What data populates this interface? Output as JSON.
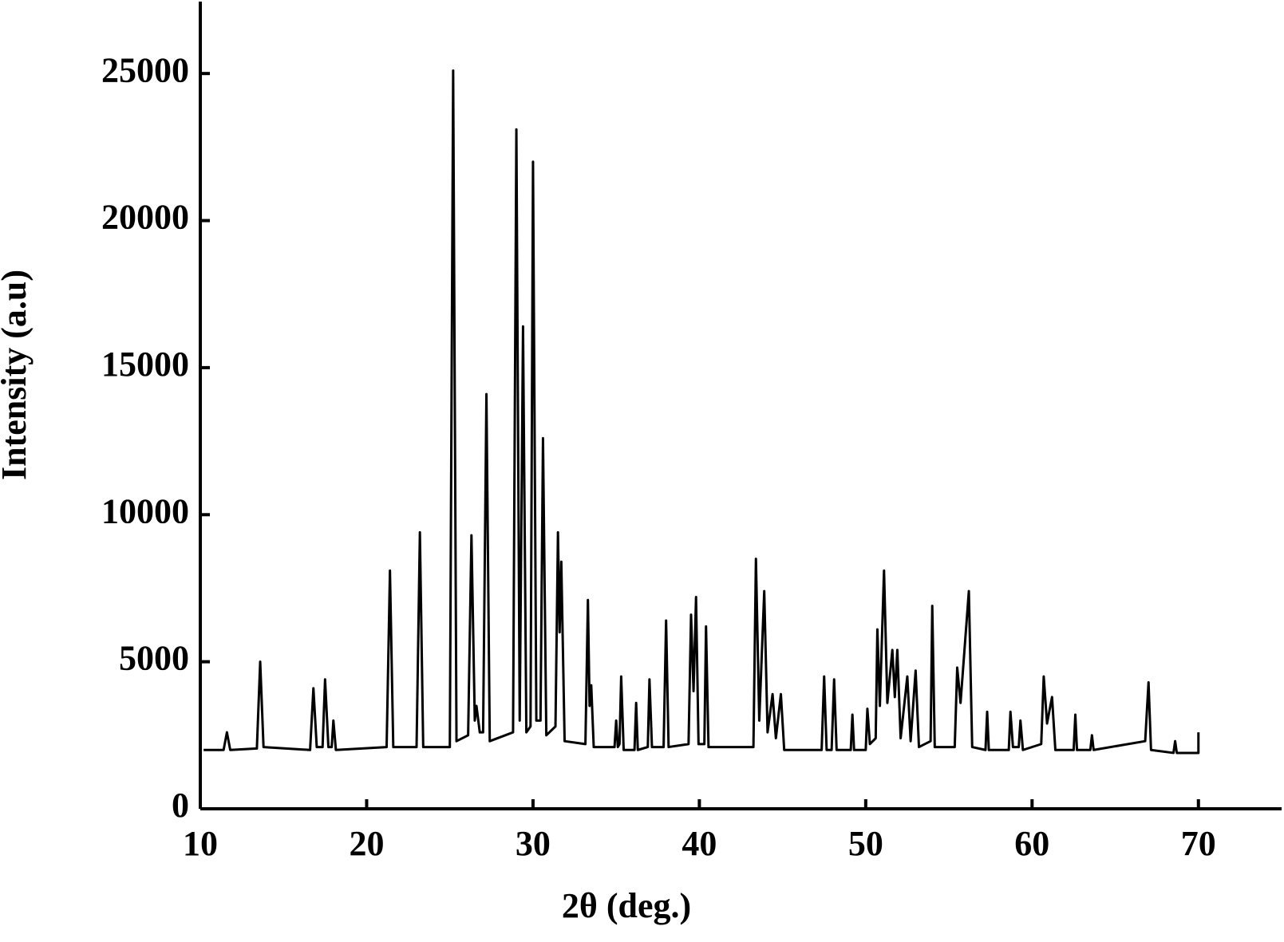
{
  "chart_data": {
    "type": "line",
    "x_label": "2θ (deg.)",
    "y_label": "Intensity (a.u)",
    "xlim": [
      10,
      75
    ],
    "ylim": [
      0,
      27500
    ],
    "xticks": [
      10,
      20,
      30,
      40,
      50,
      60,
      70
    ],
    "yticks": [
      0,
      5000,
      10000,
      15000,
      20000,
      25000
    ],
    "series": [
      {
        "color": "#000000",
        "x": [
          10.2,
          11.4,
          11.6,
          11.8,
          13.4,
          13.6,
          13.8,
          16.6,
          16.8,
          17.0,
          17.35,
          17.5,
          17.7,
          17.9,
          18.0,
          18.15,
          21.2,
          21.4,
          21.6,
          23.0,
          23.2,
          23.4,
          25.0,
          25.2,
          25.4,
          26.1,
          26.3,
          26.5,
          26.6,
          26.8,
          27.0,
          27.2,
          27.4,
          28.8,
          29.0,
          29.2,
          29.4,
          29.6,
          29.85,
          30.0,
          30.2,
          30.45,
          30.6,
          30.8,
          31.35,
          31.5,
          31.6,
          31.7,
          31.9,
          33.15,
          33.3,
          33.4,
          33.5,
          33.65,
          34.9,
          35.0,
          35.1,
          35.2,
          35.3,
          35.45,
          36.1,
          36.2,
          36.3,
          36.9,
          37.0,
          37.15,
          37.85,
          38.0,
          38.15,
          39.35,
          39.5,
          39.65,
          39.8,
          39.95,
          40.3,
          40.4,
          40.55,
          43.25,
          43.4,
          43.6,
          43.9,
          44.1,
          44.4,
          44.6,
          44.9,
          45.1,
          47.35,
          47.5,
          47.65,
          47.95,
          48.1,
          48.25,
          49.1,
          49.2,
          49.3,
          50.0,
          50.1,
          50.25,
          50.6,
          50.7,
          50.85,
          51.1,
          51.3,
          51.6,
          51.75,
          51.9,
          52.1,
          52.5,
          52.7,
          53.0,
          53.2,
          53.9,
          54.0,
          54.15,
          55.35,
          55.5,
          55.7,
          56.2,
          56.4,
          57.2,
          57.3,
          57.4,
          58.6,
          58.7,
          58.85,
          59.2,
          59.3,
          59.45,
          60.55,
          60.7,
          60.9,
          61.2,
          61.4,
          62.5,
          62.6,
          62.7,
          63.5,
          63.6,
          63.7,
          66.8,
          67.0,
          67.15,
          68.5,
          68.6,
          68.7,
          70.0,
          70.0
        ],
        "values": [
          2000,
          2000,
          2600,
          2000,
          2050,
          5000,
          2100,
          2000,
          4100,
          2100,
          2100,
          4400,
          2100,
          2100,
          3000,
          2000,
          2100,
          8100,
          2100,
          2100,
          9400,
          2100,
          2100,
          25100,
          2300,
          2500,
          9300,
          3000,
          3500,
          2600,
          2600,
          14100,
          2300,
          2600,
          23100,
          3000,
          16400,
          2600,
          2800,
          22000,
          3000,
          3000,
          12600,
          2500,
          2800,
          9400,
          6000,
          8400,
          2300,
          2200,
          7100,
          3500,
          4200,
          2100,
          2100,
          3000,
          2100,
          2200,
          4500,
          2000,
          2000,
          3600,
          2000,
          2100,
          4400,
          2100,
          2100,
          6400,
          2100,
          2200,
          6600,
          4000,
          7200,
          2200,
          2200,
          6200,
          2100,
          2100,
          8500,
          3000,
          7400,
          2600,
          3900,
          2400,
          3900,
          2000,
          2000,
          4500,
          2000,
          2000,
          4400,
          2000,
          2000,
          3200,
          2000,
          2000,
          3400,
          2200,
          2400,
          6100,
          3500,
          8100,
          3600,
          5400,
          3800,
          5400,
          2400,
          4500,
          2300,
          4700,
          2100,
          2300,
          6900,
          2100,
          2100,
          4800,
          3600,
          7400,
          2100,
          2000,
          3300,
          2000,
          2000,
          3300,
          2100,
          2100,
          3000,
          2000,
          2200,
          4500,
          2900,
          3800,
          2000,
          2000,
          3200,
          2000,
          2000,
          2500,
          2000,
          2300,
          4300,
          2000,
          1900,
          2300,
          1900,
          1900,
          2600
        ]
      }
    ]
  }
}
